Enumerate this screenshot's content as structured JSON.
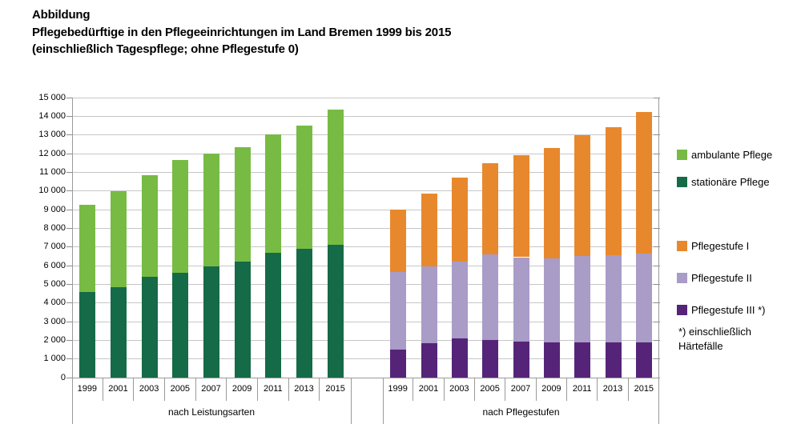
{
  "title": {
    "label": "Abbildung",
    "line1": "Pflegebedürftige in den Pflegeeinrichtungen im Land Bremen 1999 bis 2015",
    "line2": "(einschließlich Tagespflege; ohne Pflegestufe 0)"
  },
  "chart_data": {
    "type": "bar",
    "stacked": true,
    "title": "Pflegebedürftige in den Pflegeeinrichtungen im Land Bremen 1999 bis 2015 (einschließlich Tagespflege; ohne Pflegestufe 0)",
    "ylim": [
      0,
      15000
    ],
    "ytick_step": 1000,
    "ytick_values": [
      0,
      1000,
      2000,
      3000,
      4000,
      5000,
      6000,
      7000,
      8000,
      9000,
      10000,
      11000,
      12000,
      13000,
      14000,
      15000
    ],
    "ytick_labels": [
      "0",
      "1 000",
      "2 000",
      "3 000",
      "4 000",
      "5 000",
      "6 000",
      "7 000",
      "8 000",
      "9 000",
      "10 000",
      "11 000",
      "12 000",
      "13 000",
      "14 000",
      "15 000"
    ],
    "grid": true,
    "legend_position": "right",
    "groups": [
      {
        "label": "nach Leistungsarten",
        "categories": [
          "1999",
          "2001",
          "2003",
          "2005",
          "2007",
          "2009",
          "2011",
          "2013",
          "2015"
        ],
        "series": [
          {
            "name": "stationäre Pflege",
            "color": "#156B47",
            "values": [
              4600,
              4850,
              5400,
              5600,
              5950,
              6200,
              6700,
              6900,
              7100
            ]
          },
          {
            "name": "ambulante Pflege",
            "color": "#77BB44",
            "values": [
              4650,
              5150,
              5450,
              6050,
              6050,
              6150,
              6350,
              6600,
              7250
            ]
          }
        ],
        "totals": [
          9250,
          10000,
          10850,
          11650,
          12000,
          12350,
          13050,
          13500,
          14350
        ]
      },
      {
        "label": "nach Pflegestufen",
        "categories": [
          "1999",
          "2001",
          "2003",
          "2005",
          "2007",
          "2009",
          "2011",
          "2013",
          "2015"
        ],
        "series": [
          {
            "name": "Pflegestufe III *)",
            "color": "#552478",
            "values": [
              1500,
              1850,
              2100,
              2000,
              1950,
              1900,
              1900,
              1900,
              1900
            ]
          },
          {
            "name": "Pflegestufe II",
            "color": "#A99CC7",
            "values": [
              4150,
              4100,
              4100,
              4600,
              4500,
              4500,
              4600,
              4650,
              4750
            ]
          },
          {
            "name": "Pflegestufe I",
            "color": "#E8882D",
            "values": [
              3350,
              3900,
              4500,
              4900,
              5450,
              5900,
              6500,
              6850,
              7600
            ]
          }
        ],
        "totals": [
          9000,
          9850,
          10700,
          11500,
          11900,
          12300,
          13000,
          13400,
          14250
        ]
      }
    ]
  },
  "legend": {
    "items": [
      {
        "label": "ambulante Pflege",
        "color": "#77BB44"
      },
      {
        "label": "stationäre Pflege",
        "color": "#156B47"
      },
      {
        "label": "Pflegestufe I",
        "color": "#E8882D"
      },
      {
        "label": "Pflegestufe II",
        "color": "#A99CC7"
      },
      {
        "label": "Pflegestufe III *)",
        "color": "#552478"
      }
    ],
    "footnote_line1": "*) einschließlich",
    "footnote_line2": "Härtefälle"
  },
  "colors": {
    "gridline": "#C6C6C6",
    "axis": "#9A9A9A",
    "tick": "#8C8C8C"
  }
}
